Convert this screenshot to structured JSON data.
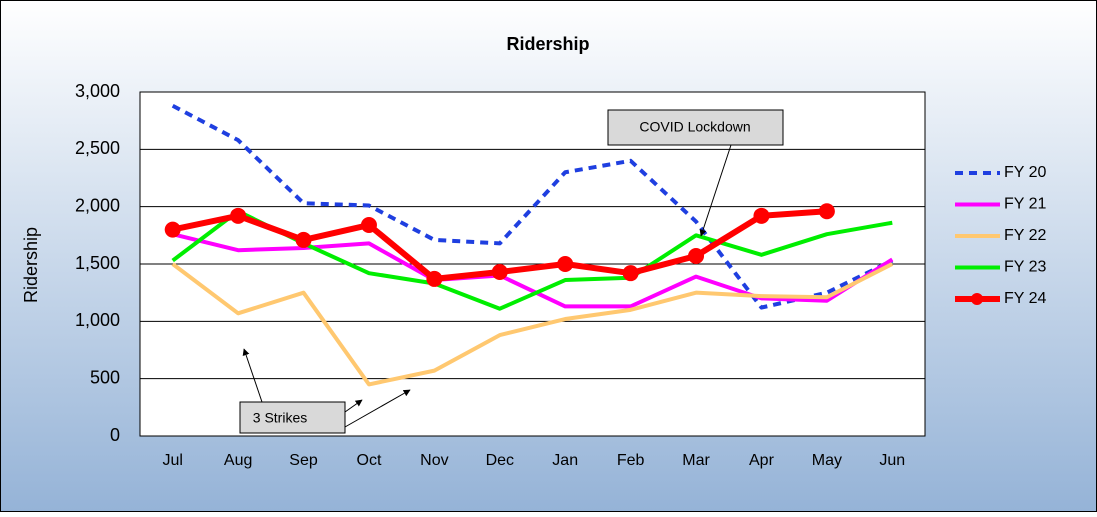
{
  "chart_data": {
    "type": "line",
    "title": "Ridership",
    "y_label": "Ridership",
    "categories": [
      "Jul",
      "Aug",
      "Sep",
      "Oct",
      "Nov",
      "Dec",
      "Jan",
      "Feb",
      "Mar",
      "Apr",
      "May",
      "Jun"
    ],
    "ylim": [
      0,
      3000
    ],
    "yticks": [
      0,
      500,
      {
        "value": 1000,
        "label": "1,000"
      },
      {
        "value": 1500,
        "label": "1,500"
      },
      {
        "value": 2000,
        "label": "2,000"
      },
      {
        "value": 2500,
        "label": "2,500"
      },
      {
        "value": 3000,
        "label": "3,000"
      }
    ],
    "grid": true,
    "legend": "right",
    "series": [
      {
        "name": "FY 20",
        "color": "#1f3fe0",
        "dashed": true,
        "markers": false,
        "values": [
          2880,
          2580,
          2030,
          2010,
          1710,
          1680,
          2300,
          2400,
          1870,
          1120,
          1250,
          1530
        ]
      },
      {
        "name": "FY 21",
        "color": "#ff00ff",
        "dashed": false,
        "markers": false,
        "values": [
          1760,
          1620,
          1640,
          1680,
          1360,
          1400,
          1130,
          1130,
          1390,
          1200,
          1180,
          1540
        ]
      },
      {
        "name": "FY 22",
        "color": "#ffc870",
        "dashed": false,
        "markers": false,
        "values": [
          1500,
          1070,
          1250,
          450,
          570,
          880,
          1020,
          1100,
          1250,
          1220,
          1210,
          1500
        ]
      },
      {
        "name": "FY 23",
        "color": "#00ee00",
        "dashed": false,
        "markers": false,
        "values": [
          1530,
          1960,
          1680,
          1420,
          1330,
          1110,
          1360,
          1380,
          1750,
          1580,
          1760,
          1860
        ]
      },
      {
        "name": "FY 24",
        "color": "#ff0000",
        "dashed": false,
        "markers": true,
        "values": [
          1800,
          1920,
          1710,
          1840,
          1370,
          1430,
          1500,
          1420,
          1570,
          1920,
          1960,
          null
        ]
      }
    ],
    "annotations": [
      "COVID Lockdown",
      "3 Strikes"
    ]
  }
}
